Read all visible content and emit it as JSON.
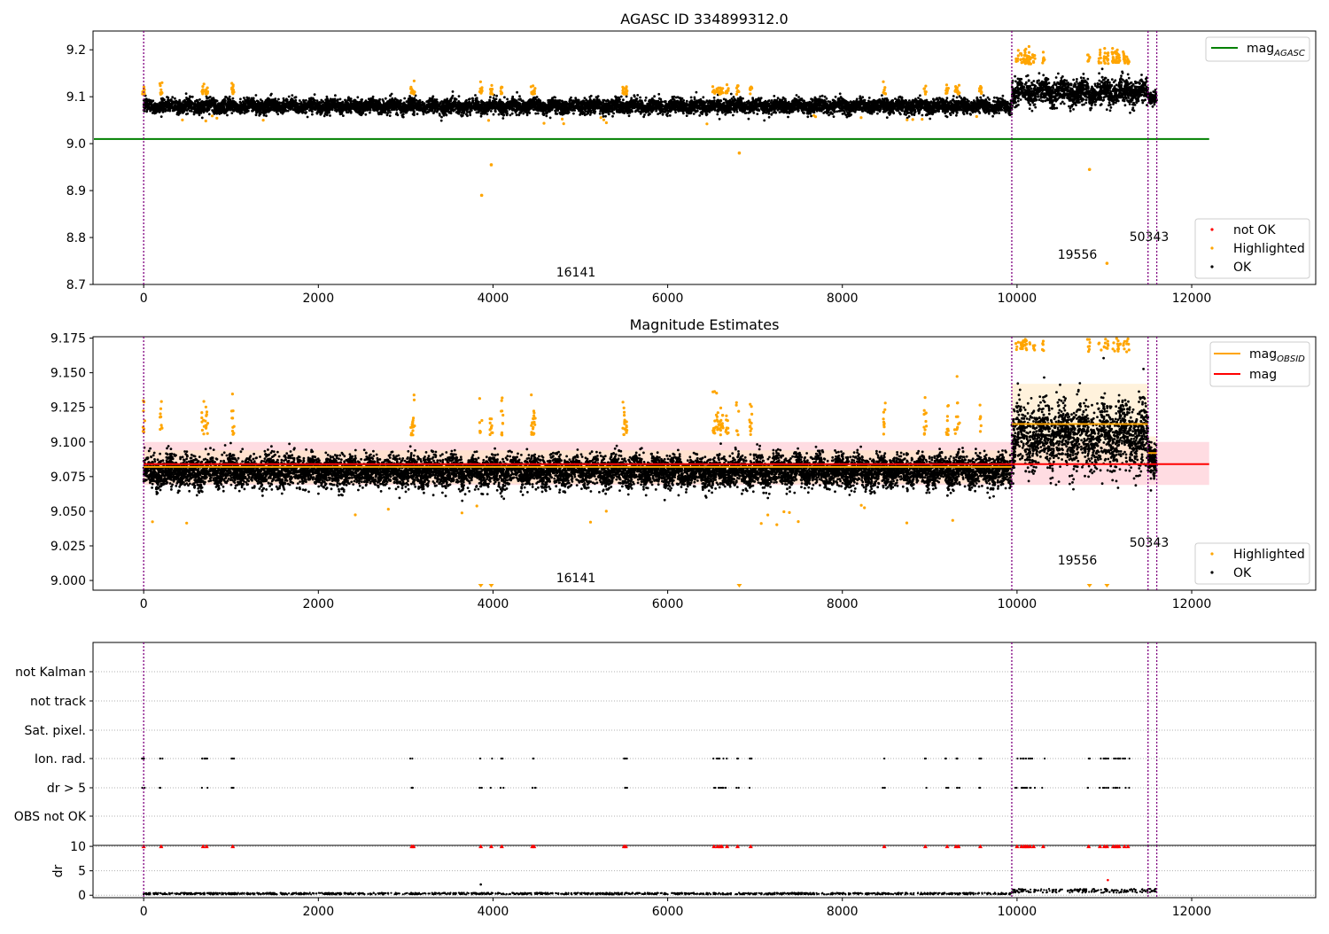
{
  "colors": {
    "ok": "#000000",
    "highlighted": "#ffa500",
    "not_ok": "#ff0000",
    "mag_agasc": "#008000",
    "mag_obsid": "#ffa500",
    "mag": "#ff0000",
    "obs_boundary": "#800080",
    "band_red": "#ffc0cb",
    "band_orange": "#ffe8c0"
  },
  "obs_boundaries": [
    0,
    9940,
    11500,
    11600
  ],
  "obs_labels": [
    {
      "x": 4960,
      "text": "16141"
    },
    {
      "x": 10720,
      "text": "19556"
    },
    {
      "x": 11530,
      "text": "50343"
    }
  ],
  "chart_data": [
    {
      "type": "scatter",
      "title": "AGASC ID 334899312.0",
      "xlim": [
        -580,
        13420
      ],
      "ylim": [
        8.7,
        9.24
      ],
      "xticks": [
        "0",
        "2000",
        "4000",
        "6000",
        "8000",
        "10000",
        "12000"
      ],
      "yticks": [
        "8.7",
        "8.8",
        "8.9",
        "9.0",
        "9.1",
        "9.2"
      ],
      "legend_lines": [
        {
          "label": "mag",
          "subscript": "AGASC",
          "value": 9.01,
          "x_range": [
            -580,
            12200
          ]
        }
      ],
      "legend_points": [
        "not OK",
        "Highlighted",
        "OK"
      ],
      "segments": [
        {
          "x": [
            0,
            9940
          ],
          "center": 9.08,
          "spread": 0.012
        },
        {
          "x": [
            9940,
            11500
          ],
          "center": 9.11,
          "spread": 0.022
        },
        {
          "x": [
            11500,
            11600
          ],
          "center": 9.1,
          "spread": 0.012
        }
      ],
      "highlighted_outliers": [
        [
          3870,
          8.89
        ],
        [
          3980,
          8.955
        ],
        [
          6820,
          8.98
        ],
        [
          10830,
          8.945
        ],
        [
          11030,
          8.745
        ]
      ]
    },
    {
      "type": "scatter",
      "title": "Magnitude Estimates",
      "xlim": [
        -580,
        13420
      ],
      "ylim": [
        8.993,
        9.176
      ],
      "xticks": [
        "0",
        "2000",
        "4000",
        "6000",
        "8000",
        "10000",
        "12000"
      ],
      "yticks": [
        "9.000",
        "9.025",
        "9.050",
        "9.075",
        "9.100",
        "9.125",
        "9.150",
        "9.175"
      ],
      "legend_lines": [
        {
          "label": "mag",
          "subscript": "OBSID"
        },
        {
          "label": "mag",
          "subscript": ""
        }
      ],
      "legend_points": [
        "Highlighted",
        "OK"
      ],
      "mag": {
        "value": 9.084,
        "band": [
          9.069,
          9.1
        ],
        "x_range": [
          0,
          12200
        ]
      },
      "mag_obsid": [
        {
          "x": [
            0,
            9940
          ],
          "value": 9.082,
          "band": [
            9.07,
            9.094
          ]
        },
        {
          "x": [
            9940,
            11500
          ],
          "value": 9.113,
          "band": [
            9.085,
            9.142
          ]
        },
        {
          "x": [
            11500,
            11600
          ],
          "value": 9.092,
          "band": [
            9.08,
            9.104
          ]
        }
      ],
      "segments": [
        {
          "x": [
            0,
            9940
          ],
          "center": 9.079,
          "spread": 0.009
        },
        {
          "x": [
            9940,
            11500
          ],
          "center": 9.104,
          "spread": 0.02
        },
        {
          "x": [
            11500,
            11600
          ],
          "center": 9.09,
          "spread": 0.01
        }
      ],
      "clipped_low_markers": [
        3860,
        3980,
        6820,
        10830,
        11030
      ]
    },
    {
      "type": "scatter",
      "title": "",
      "xlim": [
        -580,
        13420
      ],
      "xticks": [
        "0",
        "2000",
        "4000",
        "6000",
        "8000",
        "10000",
        "12000"
      ],
      "flag_rows": [
        "not Kalman",
        "not track",
        "Sat. pixel.",
        "Ion. rad.",
        "dr > 5",
        "OBS not OK"
      ],
      "flag_times": [
        0,
        200,
        680,
        720,
        1020,
        3070,
        3090,
        3860,
        3980,
        4100,
        4450,
        4470,
        5500,
        5520,
        6530,
        6570,
        6600,
        6620,
        6680,
        6800,
        6950,
        8480,
        8950,
        9200,
        9300,
        9330,
        9580,
        10000,
        10050,
        10080,
        10100,
        10120,
        10150,
        10190,
        10300,
        10820,
        10950,
        11000,
        11030,
        11100,
        11130,
        11150,
        11170,
        11230,
        11270
      ],
      "dr_ylabel": "dr",
      "dr_ylim": [
        -0.5,
        10.2
      ],
      "dr_yticks": [
        "0",
        "5",
        "10"
      ],
      "dr_outliers": [
        [
          3860,
          2.2
        ],
        [
          11040,
          3.1
        ]
      ]
    }
  ]
}
